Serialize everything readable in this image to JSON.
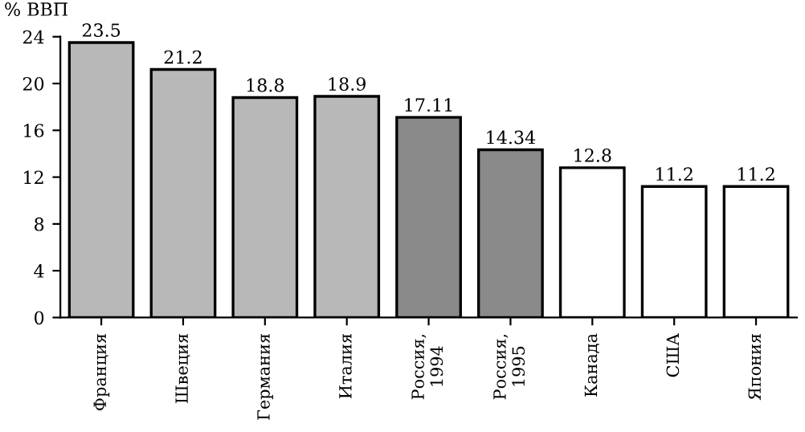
{
  "chart_data": {
    "type": "bar",
    "ylabel": "% ВВП",
    "categories": [
      "Франция",
      "Швеция",
      "Германия",
      "Италия",
      "Россия,\n1994",
      "Россия,\n1995",
      "Канада",
      "США",
      "Япония"
    ],
    "values": [
      23.5,
      21.2,
      18.8,
      18.9,
      17.11,
      14.34,
      12.8,
      11.2,
      11.2
    ],
    "colors": [
      "#b8b8b8",
      "#b8b8b8",
      "#b8b8b8",
      "#b8b8b8",
      "#8a8a8a",
      "#8a8a8a",
      "#ffffff",
      "#ffffff",
      "#ffffff"
    ],
    "ylim": [
      0,
      24
    ],
    "yticks": [
      0,
      4,
      8,
      12,
      16,
      20,
      24
    ],
    "data_labels": true,
    "grid": false,
    "legend": false
  }
}
